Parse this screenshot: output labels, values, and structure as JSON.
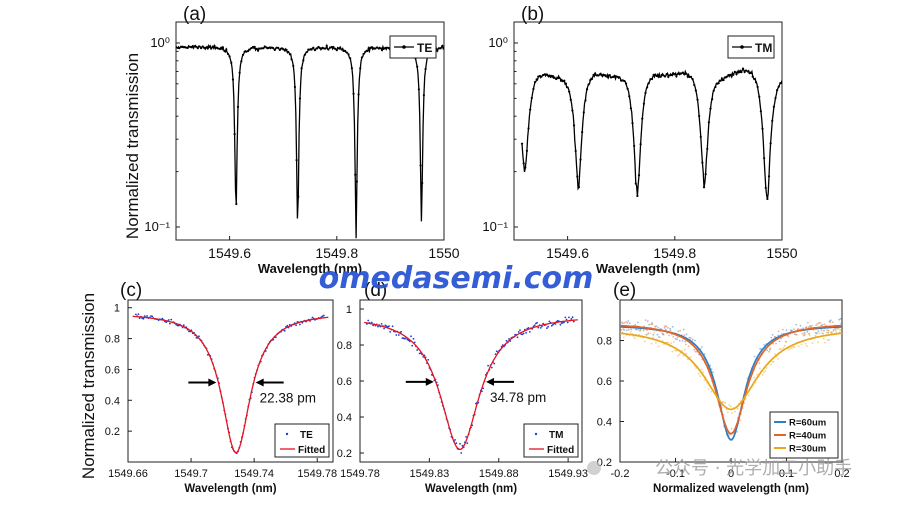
{
  "ylabel_shared": "Normalized transmission",
  "watermark": "omedasemi.com",
  "footer_watermark": "公众号 · 光学加工小助手",
  "chart_data": [
    {
      "id": "a",
      "panel_label": "(a)",
      "type": "line",
      "yscale": "log",
      "xlabel": "Wavelength (nm)",
      "ylabel": "",
      "xlim": [
        1549.5,
        1550.0
      ],
      "ylim": [
        0.085,
        1.3
      ],
      "xticks": [
        1549.6,
        1549.8,
        1550
      ],
      "xtick_labels": [
        "1549.6",
        "1549.8",
        "1550"
      ],
      "yticks": [
        0.1,
        1
      ],
      "ytick_labels": [
        "10⁻¹",
        "10⁰"
      ],
      "legend": [
        "TE"
      ],
      "legend_position": "top-right",
      "color": "#000000",
      "series": [
        {
          "name": "TE",
          "baseline": 0.95,
          "dips": [
            {
              "x": 1549.612,
              "depth": 0.12,
              "width": 0.0045
            },
            {
              "x": 1549.727,
              "depth": 0.095,
              "width": 0.0045
            },
            {
              "x": 1549.836,
              "depth": 0.087,
              "width": 0.0045
            },
            {
              "x": 1549.958,
              "depth": 0.105,
              "width": 0.0045
            }
          ]
        }
      ],
      "x_sample_range": [
        1549.5,
        1550.0
      ]
    },
    {
      "id": "b",
      "panel_label": "(b)",
      "type": "line",
      "yscale": "log",
      "xlabel": "Wavelength (nm)",
      "ylabel": "",
      "xlim": [
        1549.5,
        1550.0
      ],
      "ylim": [
        0.085,
        1.3
      ],
      "xticks": [
        1549.6,
        1549.8,
        1550
      ],
      "xtick_labels": [
        "1549.6",
        "1549.8",
        "1550"
      ],
      "yticks": [
        0.1,
        1
      ],
      "ytick_labels": [
        "10⁻¹",
        "10⁰"
      ],
      "legend": [
        "TM"
      ],
      "legend_position": "top-right",
      "color": "#000000",
      "series": [
        {
          "name": "TM",
          "baseline": 0.75,
          "dips": [
            {
              "x": 1549.52,
              "depth": 0.2,
              "width": 0.012
            },
            {
              "x": 1549.62,
              "depth": 0.17,
              "width": 0.012
            },
            {
              "x": 1549.73,
              "depth": 0.15,
              "width": 0.012
            },
            {
              "x": 1549.855,
              "depth": 0.17,
              "width": 0.012
            },
            {
              "x": 1549.972,
              "depth": 0.14,
              "width": 0.012
            }
          ]
        }
      ],
      "x_sample_range": [
        1549.515,
        1550.0
      ]
    },
    {
      "id": "c",
      "panel_label": "(c)",
      "type": "scatter",
      "xlabel": "Wavelength (nm)",
      "ylabel": "",
      "xlim": [
        1549.66,
        1549.79
      ],
      "ylim": [
        0.0,
        1.05
      ],
      "xticks": [
        1549.66,
        1549.7,
        1549.74,
        1549.78
      ],
      "xtick_labels": [
        "1549.66",
        "1549.7",
        "1549.74",
        "1549.78"
      ],
      "yticks": [
        0.2,
        0.4,
        0.6,
        0.8,
        1
      ],
      "ytick_labels": [
        "0.2",
        "0.4",
        "0.6",
        "0.8",
        "1"
      ],
      "legend": [
        "TE",
        "Fitted"
      ],
      "legend_position": "bottom-right",
      "annotation": "22.38 pm",
      "center": 1549.7285,
      "min": 0.06,
      "max": 0.97,
      "linewidth_nm": 0.02238,
      "series": [
        {
          "name": "TE",
          "color": "#1f3fd0",
          "kind": "points"
        },
        {
          "name": "Fitted",
          "color": "#e4141e",
          "kind": "line"
        }
      ]
    },
    {
      "id": "d",
      "panel_label": "(d)",
      "type": "scatter",
      "xlabel": "Wavelength (nm)",
      "ylabel": "",
      "xlim": [
        1549.78,
        1549.94
      ],
      "ylim": [
        0.15,
        1.05
      ],
      "xticks": [
        1549.78,
        1549.83,
        1549.88,
        1549.93
      ],
      "xtick_labels": [
        "1549.78",
        "1549.83",
        "1549.88",
        "1549.93"
      ],
      "yticks": [
        0.2,
        0.4,
        0.6,
        0.8,
        1
      ],
      "ytick_labels": [
        "0.2",
        "0.4",
        "0.6",
        "0.8",
        "1"
      ],
      "legend": [
        "TM",
        "Fitted"
      ],
      "legend_position": "bottom-right",
      "annotation": "34.78 pm",
      "center": 1549.852,
      "min": 0.22,
      "max": 0.97,
      "linewidth_nm": 0.03478,
      "series": [
        {
          "name": "TM",
          "color": "#1f3fd0",
          "kind": "points"
        },
        {
          "name": "Fitted",
          "color": "#e4141e",
          "kind": "line"
        }
      ]
    },
    {
      "id": "e",
      "panel_label": "(e)",
      "type": "line",
      "xlabel": "Normalized wavelength (nm)",
      "ylabel": "",
      "xlim": [
        -0.2,
        0.2
      ],
      "ylim": [
        0.2,
        1.0
      ],
      "xticks": [
        -0.2,
        -0.1,
        0,
        0.1,
        0.2
      ],
      "xtick_labels": [
        "-0.2",
        "-0.1",
        "0",
        "0.1",
        "0.2"
      ],
      "yticks": [
        0.2,
        0.4,
        0.6,
        0.8
      ],
      "ytick_labels": [
        "0.2",
        "0.4",
        "0.6",
        "0.8"
      ],
      "legend": [
        "R=60um",
        "R=40um",
        "R=30um"
      ],
      "legend_position": "bottom-right",
      "series": [
        {
          "name": "R=60um",
          "color": "#2b7fc4",
          "base": 0.88,
          "min": 0.31,
          "width": 0.03
        },
        {
          "name": "R=40um",
          "color": "#e2642a",
          "base": 0.89,
          "min": 0.34,
          "width": 0.035
        },
        {
          "name": "R=30um",
          "color": "#e8a81e",
          "base": 0.87,
          "min": 0.46,
          "width": 0.06
        }
      ]
    }
  ]
}
